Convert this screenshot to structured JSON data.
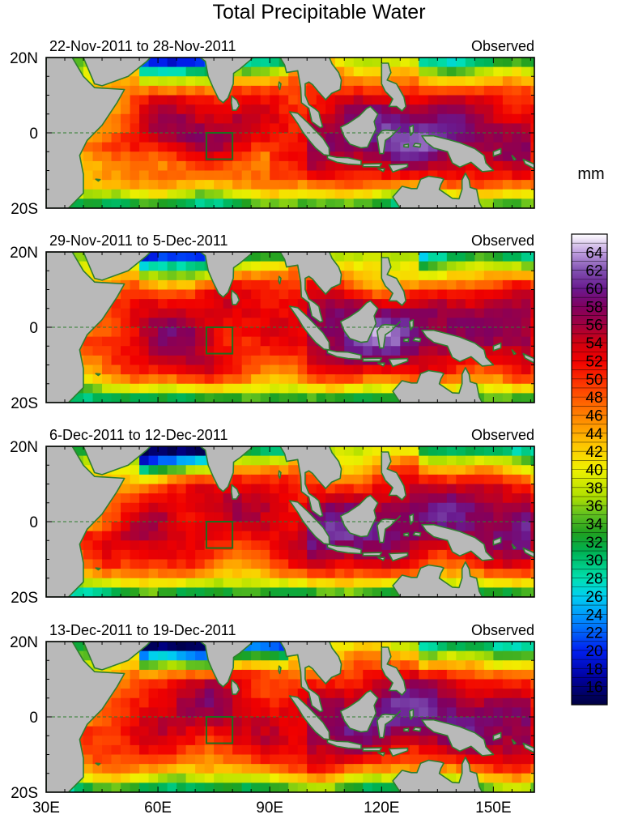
{
  "chart_data": {
    "type": "heatmap",
    "title": "Total Precipitable Water",
    "units": "mm",
    "x_axis": {
      "range": [
        30,
        161
      ],
      "ticks": [
        30,
        60,
        90,
        120,
        150
      ],
      "tick_labels": [
        "30E",
        "60E",
        "90E",
        "120E",
        "150E"
      ]
    },
    "y_axis": {
      "range": [
        -20,
        20
      ],
      "ticks": [
        20,
        0,
        -20
      ],
      "tick_labels": [
        "20N",
        "0",
        "20S"
      ]
    },
    "colorbar": {
      "min": 14,
      "max": 66,
      "step": 1,
      "tick_values": [
        16,
        18,
        20,
        22,
        24,
        26,
        28,
        30,
        32,
        34,
        36,
        38,
        40,
        42,
        44,
        46,
        48,
        50,
        52,
        54,
        56,
        58,
        60,
        62,
        64
      ],
      "tick_labels": [
        "16",
        "18",
        "20",
        "22",
        "24",
        "26",
        "28",
        "30",
        "32",
        "34",
        "36",
        "38",
        "40",
        "42",
        "44",
        "46",
        "48",
        "50",
        "52",
        "54",
        "56",
        "58",
        "60",
        "62",
        "64"
      ],
      "color_stops": [
        {
          "v": 14,
          "c": "#000040"
        },
        {
          "v": 17,
          "c": "#0000a0"
        },
        {
          "v": 20,
          "c": "#0020f0"
        },
        {
          "v": 23,
          "c": "#0080ff"
        },
        {
          "v": 26,
          "c": "#00d0f0"
        },
        {
          "v": 28,
          "c": "#00e0b0"
        },
        {
          "v": 31,
          "c": "#00b050"
        },
        {
          "v": 33,
          "c": "#20a020"
        },
        {
          "v": 35,
          "c": "#60c020"
        },
        {
          "v": 37,
          "c": "#b0e000"
        },
        {
          "v": 40,
          "c": "#f0f000"
        },
        {
          "v": 43,
          "c": "#ffc000"
        },
        {
          "v": 46,
          "c": "#ff8000"
        },
        {
          "v": 49,
          "c": "#ff4000"
        },
        {
          "v": 52,
          "c": "#f00000"
        },
        {
          "v": 54,
          "c": "#d00010"
        },
        {
          "v": 56,
          "c": "#a00040"
        },
        {
          "v": 58,
          "c": "#800060"
        },
        {
          "v": 60,
          "c": "#6a1a90"
        },
        {
          "v": 62,
          "c": "#8050b0"
        },
        {
          "v": 64,
          "c": "#c0a0e0"
        },
        {
          "v": 66,
          "c": "#ffffff"
        }
      ]
    },
    "box_region": {
      "lon": [
        73,
        80
      ],
      "lat": [
        -7,
        0
      ]
    },
    "panels": [
      {
        "period": "22-Nov-2011 to 28-Nov-2011",
        "label": "Observed"
      },
      {
        "period": "29-Nov-2011 to 5-Dec-2011",
        "label": "Observed"
      },
      {
        "period": "6-Dec-2011 to 12-Dec-2011",
        "label": "Observed"
      },
      {
        "period": "13-Dec-2011 to 19-Dec-2011",
        "label": "Observed"
      }
    ],
    "colors": {
      "land": "#b9b9b9",
      "coastline": "#2f7d2f",
      "box": "#1e6e1e",
      "equator": "#2f7d2f"
    }
  }
}
